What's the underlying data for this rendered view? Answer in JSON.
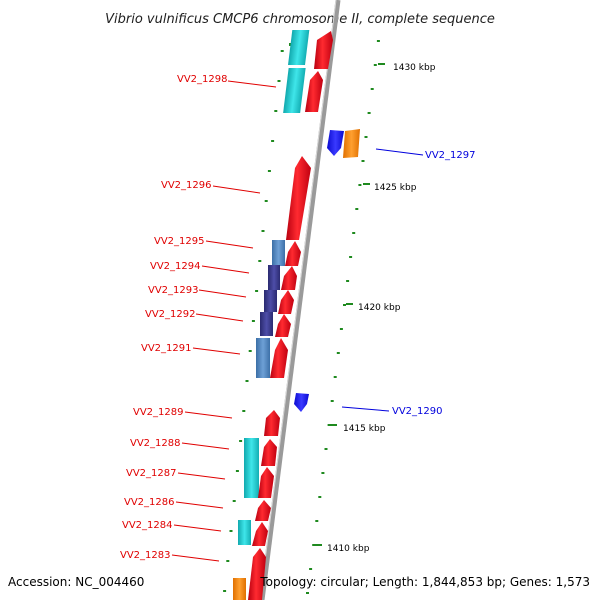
{
  "title": "Vibrio vulnificus CMCP6 chromosome II, complete sequence",
  "footer": {
    "accession": "Accession: NC_004460",
    "topology": "Topology: circular; Length: 1,844,853 bp; Genes: 1,573"
  },
  "colors": {
    "forward_gene": "#e8101c",
    "cyan_feature": "#19c9cf",
    "steelblue_feature": "#4f84bd",
    "navy_feature": "#3a3a8c",
    "reverse_gene": "#1a1aff",
    "orange_feature": "#ff8a10",
    "tick": "#1f8a1f",
    "backbone": "#999999",
    "forward_label": "#e00000",
    "reverse_label": "#0000dd"
  },
  "kbp_labels": [
    "1430 kbp",
    "1425 kbp",
    "1420 kbp",
    "1415 kbp",
    "1410 kbp"
  ],
  "forward_labels": [
    "VV2_1298",
    "VV2_1296",
    "VV2_1295",
    "VV2_1294",
    "VV2_1293",
    "VV2_1292",
    "VV2_1291",
    "VV2_1289",
    "VV2_1288",
    "VV2_1287",
    "VV2_1286",
    "VV2_1284",
    "VV2_1283"
  ],
  "reverse_labels": [
    "VV2_1297",
    "VV2_1290"
  ]
}
